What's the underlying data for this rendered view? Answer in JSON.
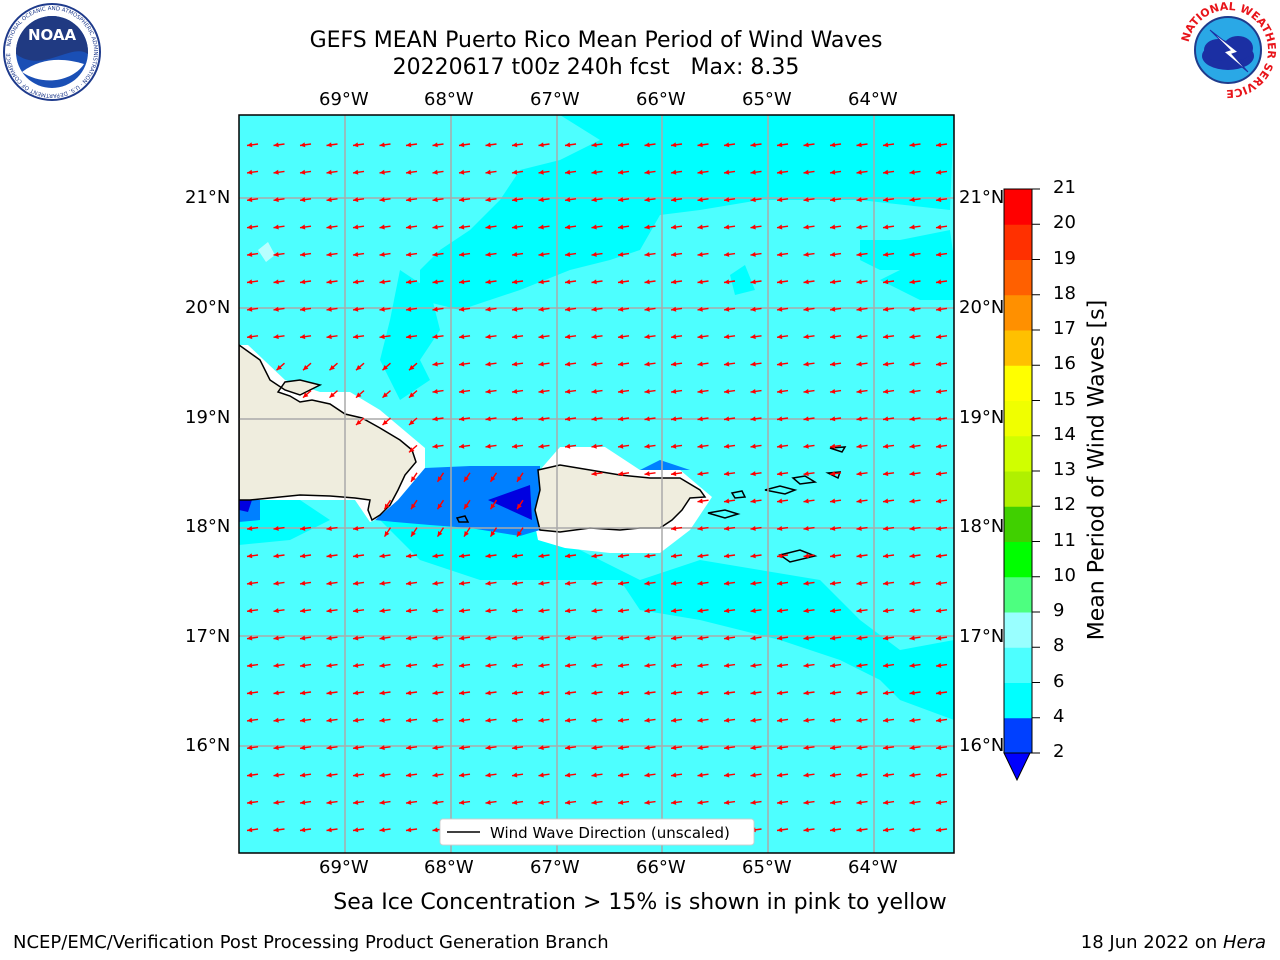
{
  "header": {
    "title_line1": "GEFS MEAN Puerto Rico Mean Period of Wind Waves",
    "title_line2": "20220617 t00z 240h fcst   Max: 8.35"
  },
  "logos": {
    "left": {
      "text": "NOAA",
      "ring_text": "NATIONAL OCEANIC AND ATMOSPHERIC ADMINISTRATION · U.S. DEPARTMENT OF COMMERCE",
      "icon": "noaa-logo-icon"
    },
    "right": {
      "ring_text": "NATIONAL WEATHER SERVICE",
      "icon": "nws-logo-icon"
    }
  },
  "map": {
    "lon_labels": [
      "69°W",
      "68°W",
      "67°W",
      "66°W",
      "65°W",
      "64°W"
    ],
    "lat_labels": [
      "21°N",
      "20°N",
      "19°N",
      "18°N",
      "17°N",
      "16°N"
    ],
    "legend_label": "Wind Wave Direction (unscaled)",
    "ocean_color": "#4dffff",
    "land_color": "#efedde",
    "arrow_color": "#ff0000"
  },
  "colorbar": {
    "title": "Mean Period of Wind Waves [s]",
    "ticks": [
      "2",
      "4",
      "6",
      "8",
      "9",
      "10",
      "11",
      "12",
      "13",
      "14",
      "15",
      "16",
      "17",
      "18",
      "19",
      "20",
      "21"
    ],
    "colors": [
      "#0040ff",
      "#00ffff",
      "#4dffff",
      "#99ffff",
      "#4dff80",
      "#00ff00",
      "#40d000",
      "#b0f000",
      "#d0ff00",
      "#f0ff00",
      "#ffff00",
      "#ffc000",
      "#ff9000",
      "#ff6000",
      "#ff3000",
      "#ff0000"
    ],
    "under_color": "#0000ff"
  },
  "subcaption": "Sea Ice Concentration > 15% is shown in pink to yellow",
  "footer": {
    "left": "NCEP/EMC/Verification Post Processing Product Generation Branch",
    "right_date": "18 Jun 2022 on ",
    "right_host": "Hera"
  }
}
